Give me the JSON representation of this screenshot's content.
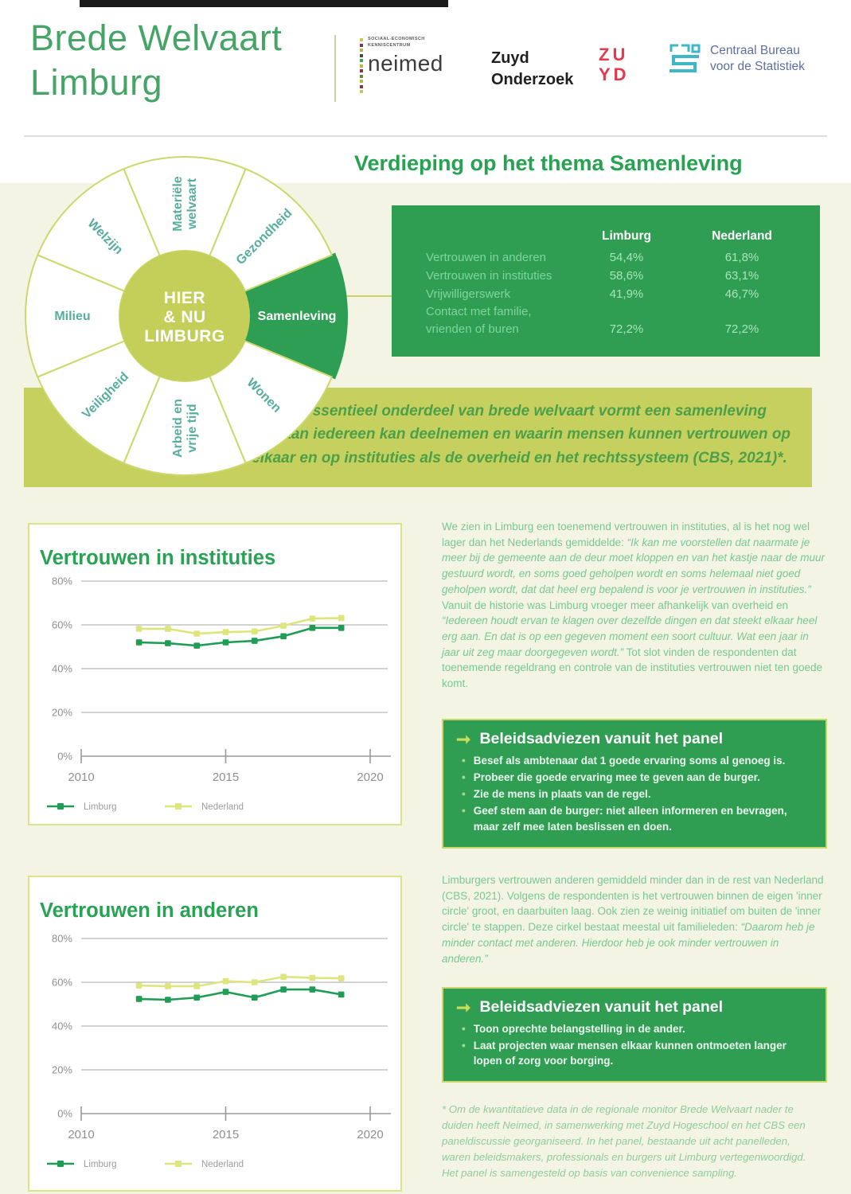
{
  "header": {
    "title_line1": "Brede Welvaart",
    "title_line2": "Limburg",
    "logos": {
      "neimed_small1": "SOCIAAL-ECONOMISCH",
      "neimed_small2": "KENNISCENTRUM",
      "neimed_name": "neimed",
      "neimed_dot_colors": [
        "#c8c94b",
        "#8e3347",
        "#b6b93e",
        "#4a4a4a",
        "#3aa75a",
        "#b6b93e",
        "#8e3347",
        "#6b8c3a",
        "#b6b93e",
        "#8e3347",
        "#c8c94b"
      ],
      "zuyd_line1": "Zuyd",
      "zuyd_line2": "Onderzoek",
      "zuyd_mark_line1": "ZU",
      "zuyd_mark_line2": "YD",
      "cbs_line1": "Centraal Bureau",
      "cbs_line2": "voor de Statistiek"
    }
  },
  "section_title": "Verdieping op het thema Samenleving",
  "wheel": {
    "center_lines": [
      "HIER",
      "& NU",
      "LIMBURG"
    ],
    "segments": [
      {
        "lines": [
          "Samenleving"
        ],
        "highlight": true
      },
      {
        "lines": [
          "Wonen"
        ],
        "highlight": false
      },
      {
        "lines": [
          "Arbeid en",
          "vrije tijd"
        ],
        "highlight": false
      },
      {
        "lines": [
          "Veiligheid"
        ],
        "highlight": false
      },
      {
        "lines": [
          "Milieu"
        ],
        "highlight": false
      },
      {
        "lines": [
          "Welzijn"
        ],
        "highlight": false
      },
      {
        "lines": [
          "Materiële",
          "welvaart"
        ],
        "highlight": false
      },
      {
        "lines": [
          "Gezondheid"
        ],
        "highlight": false
      }
    ]
  },
  "stats_table": {
    "col1": "Limburg",
    "col2": "Nederland",
    "rows": [
      {
        "label_lines": [
          "Vertrouwen in anderen"
        ],
        "limburg": "54,4%",
        "nederland": "61,8%"
      },
      {
        "label_lines": [
          "Vertrouwen in instituties"
        ],
        "limburg": "58,6%",
        "nederland": "63,1%"
      },
      {
        "label_lines": [
          "Vrijwilligerswerk"
        ],
        "limburg": "41,9%",
        "nederland": "46,7%"
      },
      {
        "label_lines": [
          "Contact met familie,",
          "vrienden of buren"
        ],
        "limburg": "72,2%",
        "nederland": "72,2%"
      }
    ]
  },
  "quote": "Een essentieel onderdeel van brede welvaart vormt een samenleving waaraan iedereen kan deelnemen en waarin mensen kunnen vertrouwen op elkaar en op instituties als de overheid en het rechtssysteem (CBS, 2021)*.",
  "chart_data": [
    {
      "type": "line",
      "title": "Vertrouwen in instituties",
      "xlabel": "",
      "ylabel": "",
      "x": [
        2012,
        2013,
        2014,
        2015,
        2016,
        2017,
        2018,
        2019
      ],
      "series": [
        {
          "name": "Limburg",
          "color": "#1f9d55",
          "values": [
            52.0,
            51.6,
            50.5,
            52.0,
            52.7,
            54.8,
            58.6,
            58.6
          ]
        },
        {
          "name": "Nederland",
          "color": "#dde57c",
          "values": [
            58.2,
            58.2,
            56.0,
            56.7,
            57.0,
            59.6,
            62.9,
            63.1
          ]
        }
      ],
      "ylim": [
        0,
        80
      ],
      "yticks": [
        0,
        20,
        40,
        60,
        80
      ],
      "ytick_suffix": "%",
      "xticks": [
        2010,
        2015,
        2020
      ],
      "xlim": [
        2010,
        2020.6
      ],
      "grid": true,
      "legend_position": "bottom"
    },
    {
      "type": "line",
      "title": "Vertrouwen in anderen",
      "xlabel": "",
      "ylabel": "",
      "x": [
        2012,
        2013,
        2014,
        2015,
        2016,
        2017,
        2018,
        2019
      ],
      "series": [
        {
          "name": "Limburg",
          "color": "#1f9d55",
          "values": [
            52.4,
            52.0,
            53.0,
            55.6,
            53.0,
            56.7,
            56.7,
            54.4
          ]
        },
        {
          "name": "Nederland",
          "color": "#dde57c",
          "values": [
            58.5,
            58.2,
            58.2,
            60.5,
            60.0,
            62.5,
            62.0,
            61.8
          ]
        }
      ],
      "ylim": [
        0,
        80
      ],
      "yticks": [
        0,
        20,
        40,
        60,
        80
      ],
      "ytick_suffix": "%",
      "xticks": [
        2010,
        2015,
        2020
      ],
      "xlim": [
        2010,
        2020.6
      ],
      "grid": true,
      "legend_position": "bottom"
    }
  ],
  "text1_runs": [
    {
      "t": "We zien in Limburg een toenemend vertrouwen in instituties, al is het nog wel lager dan het Nederlands gemiddelde: ",
      "i": false
    },
    {
      "t": "“Ik kan me voorstellen dat naarmate je meer bij de gemeente aan de deur moet kloppen en van het kastje naar de muur gestuurd wordt, en soms goed geholpen wordt en soms helemaal niet goed geholpen wordt, dat dat heel erg bepalend is voor je vertrouwen in instituties.”",
      "i": true
    },
    {
      "t": " Vanuit de historie was Limburg vroeger meer afhankelijk van overheid en ",
      "i": false
    },
    {
      "t": "“Iedereen houdt ervan te klagen over dezelfde dingen en dat steekt elkaar heel erg aan. En dat is op een gegeven moment een soort cultuur. Wat een jaar in jaar uit zeg maar doorgegeven wordt.”",
      "i": true
    },
    {
      "t": " Tot slot vinden de respondenten dat toenemende regeldrang en controle van de instituties vertrouwen niet ten goede komt.",
      "i": false
    }
  ],
  "panel1": {
    "title": "Beleidsadviezen vanuit het panel",
    "bullets": [
      "Besef als ambtenaar dat 1 goede ervaring soms al genoeg is.",
      "Probeer die goede ervaring mee te geven aan de burger.",
      "Zie de mens in plaats van de regel.",
      "Geef stem aan de burger: niet alleen informeren en bevragen, maar zelf mee laten beslissen en doen."
    ]
  },
  "text2_runs": [
    {
      "t": "Limburgers vertrouwen anderen gemiddeld minder dan in de rest van Nederland (CBS, 2021). Volgens de respondenten is het vertrouwen binnen de eigen 'inner circle' groot, en daarbuiten laag. Ook zien ze weinig initiatief om buiten de 'inner circle' te stappen. Deze cirkel bestaat meestal uit familieleden: ",
      "i": false
    },
    {
      "t": "“Daarom heb je minder contact met anderen. Hierdoor heb je ook minder vertrouwen in anderen.”",
      "i": true
    }
  ],
  "panel2": {
    "title": "Beleidsadviezen vanuit het panel",
    "bullets": [
      "Toon oprechte belangstelling in de ander.",
      "Laat projecten waar mensen elkaar kunnen ontmoeten langer lopen of zorg voor borging."
    ]
  },
  "footnote": "* Om de kwantitatieve data in de regionale monitor Brede Welvaart nader te duiden heeft Neimed, in samenwerking met Zuyd Hogeschool en het CBS een paneldiscussie georganiseerd. In het panel, bestaande uit acht panelleden, waren beleidsmakers, professionals en burgers uit Limburg vertegenwoordigd. Het panel is samengesteld op basis van convenience sampling.",
  "colors": {
    "panel_green": "#2f9e52",
    "lime": "#c5d05e",
    "series_limburg": "#1f9d55",
    "series_nederland": "#dde57c",
    "heading_green": "#28a354",
    "wheel_label_teal": "#57ad9e",
    "wheel_center_lime": "#c4cf5a",
    "wheel_stroke_lime": "#ccd86b",
    "wheel_highlight_green": "#2d9e53",
    "grid_grey": "#b9b9b9",
    "tick_text_grey": "#8f8f8f"
  }
}
